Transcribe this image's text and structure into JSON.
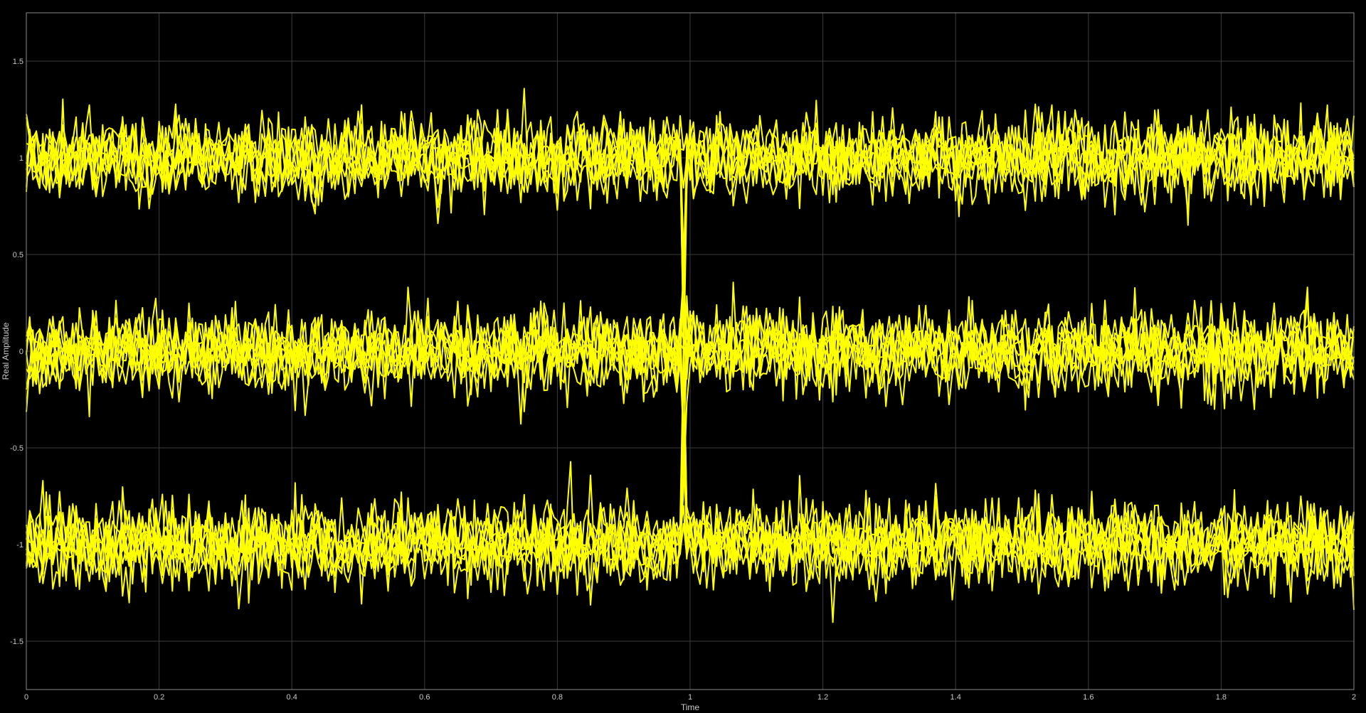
{
  "chart_data": {
    "type": "line",
    "title": "",
    "xlabel": "Time",
    "ylabel": "Real Amplitude",
    "xlim": [
      0,
      2
    ],
    "ylim": [
      -1.75,
      1.75
    ],
    "xticks": [
      0,
      0.2,
      0.4,
      0.6,
      0.8,
      1,
      1.2,
      1.4,
      1.6,
      1.8,
      2
    ],
    "xtick_labels": [
      "0",
      "0.2",
      "0.4",
      "0.6",
      "0.8",
      "1",
      "1.2",
      "1.4",
      "1.6",
      "1.8",
      "2"
    ],
    "yticks": [
      1.5,
      1,
      0.5,
      0,
      -0.5,
      -1,
      -1.5
    ],
    "ytick_labels": [
      "1.5",
      "1",
      "0.5",
      "0",
      "-0.5",
      "-1",
      "-1.5"
    ],
    "grid": true,
    "legend": "none",
    "colors": {
      "background": "#000000",
      "axes_border": "#8a8a8a",
      "grid": "#3c3c3c",
      "trace": "#ffff00",
      "text": "#c8c8c8"
    },
    "traces": {
      "description_levels": [
        1,
        0,
        -1
      ],
      "noise_std": 0.1,
      "per_level_traces": 7,
      "samples": 400,
      "transitions_at": [
        0.99,
        1.99
      ]
    }
  }
}
